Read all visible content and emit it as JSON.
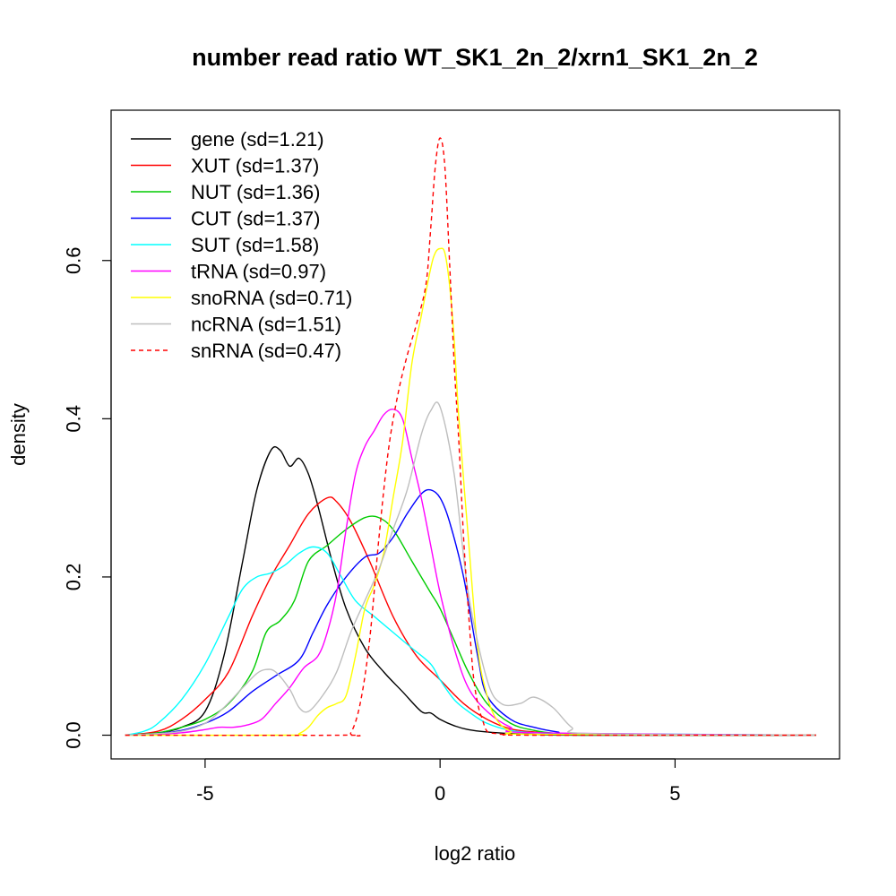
{
  "chart_data": {
    "type": "line",
    "title": "number read ratio WT_SK1_2n_2/xrn1_SK1_2n_2",
    "xlabel": "log2 ratio",
    "ylabel": "density",
    "xlim": [
      -7,
      8.5
    ],
    "ylim": [
      -0.03,
      0.79
    ],
    "x_ticks": [
      -5,
      0,
      5
    ],
    "x_tick_labels": [
      "-5",
      "0",
      "5"
    ],
    "y_ticks": [
      0.0,
      0.2,
      0.4,
      0.6
    ],
    "y_tick_labels": [
      "0.0",
      "0.2",
      "0.4",
      "0.6"
    ],
    "grid": false,
    "legend_position": "top-left",
    "series": [
      {
        "name": "gene (sd=1.21)",
        "color": "#000000",
        "dash": "solid",
        "x": [
          -6.7,
          -6.0,
          -5.5,
          -5.0,
          -4.6,
          -4.2,
          -3.9,
          -3.6,
          -3.4,
          -3.2,
          -3.0,
          -2.8,
          -2.6,
          -2.3,
          -2.0,
          -1.6,
          -1.2,
          -0.8,
          -0.4,
          -0.2,
          0.0,
          0.3,
          0.6,
          1.0,
          1.5,
          2.0,
          3.0,
          8.0
        ],
        "y": [
          0.0,
          0.003,
          0.01,
          0.03,
          0.1,
          0.22,
          0.31,
          0.36,
          0.36,
          0.34,
          0.35,
          0.33,
          0.29,
          0.22,
          0.16,
          0.11,
          0.08,
          0.055,
          0.03,
          0.028,
          0.02,
          0.012,
          0.007,
          0.004,
          0.002,
          0.001,
          0.0,
          0.0
        ]
      },
      {
        "name": "XUT (sd=1.37)",
        "color": "#ff0000",
        "dash": "solid",
        "x": [
          -6.7,
          -6.0,
          -5.5,
          -5.0,
          -4.5,
          -4.0,
          -3.6,
          -3.2,
          -2.8,
          -2.4,
          -2.2,
          -1.9,
          -1.5,
          -1.0,
          -0.5,
          0.0,
          0.5,
          1.0,
          1.5,
          2.0,
          2.5,
          3.0,
          8.0
        ],
        "y": [
          0.0,
          0.005,
          0.02,
          0.045,
          0.08,
          0.15,
          0.2,
          0.24,
          0.28,
          0.3,
          0.295,
          0.27,
          0.22,
          0.15,
          0.1,
          0.07,
          0.04,
          0.02,
          0.008,
          0.004,
          0.002,
          0.001,
          0.0
        ]
      },
      {
        "name": "NUT (sd=1.36)",
        "color": "#00cc00",
        "dash": "solid",
        "x": [
          -6.7,
          -6.0,
          -5.5,
          -5.0,
          -4.5,
          -4.0,
          -3.7,
          -3.4,
          -3.1,
          -2.8,
          -2.4,
          -2.0,
          -1.6,
          -1.3,
          -1.0,
          -0.6,
          -0.2,
          0.0,
          0.3,
          0.6,
          1.0,
          1.5,
          2.0,
          2.5,
          3.0,
          8.0
        ],
        "y": [
          0.0,
          0.003,
          0.01,
          0.02,
          0.04,
          0.08,
          0.13,
          0.145,
          0.17,
          0.22,
          0.24,
          0.26,
          0.275,
          0.275,
          0.26,
          0.22,
          0.18,
          0.16,
          0.12,
          0.08,
          0.04,
          0.015,
          0.006,
          0.002,
          0.001,
          0.0
        ]
      },
      {
        "name": "CUT (sd=1.37)",
        "color": "#0000ff",
        "dash": "solid",
        "x": [
          -6.7,
          -6.0,
          -5.5,
          -5.0,
          -4.5,
          -4.0,
          -3.5,
          -3.0,
          -2.7,
          -2.4,
          -2.0,
          -1.6,
          -1.3,
          -1.0,
          -0.7,
          -0.4,
          -0.2,
          0.0,
          0.2,
          0.5,
          0.8,
          1.0,
          1.5,
          2.0,
          2.5,
          3.0,
          8.0
        ],
        "y": [
          0.0,
          0.002,
          0.006,
          0.015,
          0.03,
          0.055,
          0.075,
          0.095,
          0.13,
          0.165,
          0.2,
          0.225,
          0.23,
          0.25,
          0.28,
          0.305,
          0.31,
          0.3,
          0.27,
          0.2,
          0.1,
          0.05,
          0.02,
          0.01,
          0.004,
          0.001,
          0.0
        ]
      },
      {
        "name": "SUT (sd=1.58)",
        "color": "#00ffff",
        "dash": "solid",
        "x": [
          -6.7,
          -6.3,
          -6.0,
          -5.5,
          -5.0,
          -4.5,
          -4.2,
          -3.9,
          -3.6,
          -3.3,
          -3.0,
          -2.7,
          -2.4,
          -2.1,
          -1.8,
          -1.4,
          -1.0,
          -0.6,
          -0.2,
          0.0,
          0.3,
          0.6,
          1.0,
          1.5,
          2.0,
          2.5,
          3.0,
          8.0
        ],
        "y": [
          0.0,
          0.005,
          0.015,
          0.045,
          0.09,
          0.15,
          0.185,
          0.2,
          0.205,
          0.215,
          0.23,
          0.238,
          0.23,
          0.2,
          0.17,
          0.15,
          0.13,
          0.11,
          0.09,
          0.07,
          0.045,
          0.03,
          0.015,
          0.006,
          0.003,
          0.002,
          0.002,
          0.0
        ]
      },
      {
        "name": "tRNA (sd=0.97)",
        "color": "#ff00ff",
        "dash": "solid",
        "x": [
          -6.7,
          -6.0,
          -5.5,
          -5.0,
          -4.7,
          -4.4,
          -4.1,
          -3.8,
          -3.5,
          -3.2,
          -2.9,
          -2.6,
          -2.4,
          -2.2,
          -2.0,
          -1.8,
          -1.6,
          -1.4,
          -1.2,
          -1.0,
          -0.8,
          -0.6,
          -0.4,
          -0.2,
          0.0,
          0.3,
          0.6,
          1.0,
          1.5,
          2.0,
          8.0
        ],
        "y": [
          0.0,
          0.001,
          0.003,
          0.007,
          0.01,
          0.01,
          0.013,
          0.02,
          0.04,
          0.06,
          0.085,
          0.1,
          0.13,
          0.18,
          0.26,
          0.33,
          0.365,
          0.385,
          0.405,
          0.412,
          0.4,
          0.35,
          0.3,
          0.24,
          0.18,
          0.11,
          0.06,
          0.03,
          0.01,
          0.003,
          0.0
        ]
      },
      {
        "name": "snoRNA (sd=0.71)",
        "color": "#ffff00",
        "dash": "solid",
        "x": [
          -6.7,
          -3.2,
          -3.0,
          -2.8,
          -2.6,
          -2.4,
          -2.2,
          -2.0,
          -1.8,
          -1.6,
          -1.4,
          -1.2,
          -1.0,
          -0.8,
          -0.6,
          -0.4,
          -0.2,
          -0.1,
          0.0,
          0.1,
          0.2,
          0.3,
          0.4,
          0.6,
          0.8,
          1.0,
          1.2,
          1.5,
          2.0,
          8.0
        ],
        "y": [
          0.0,
          0.0,
          0.002,
          0.01,
          0.025,
          0.035,
          0.04,
          0.05,
          0.1,
          0.16,
          0.19,
          0.23,
          0.3,
          0.37,
          0.47,
          0.53,
          0.59,
          0.61,
          0.615,
          0.61,
          0.57,
          0.5,
          0.4,
          0.25,
          0.11,
          0.05,
          0.02,
          0.005,
          0.001,
          0.0
        ]
      },
      {
        "name": "ncRNA (sd=1.51)",
        "color": "#bebebe",
        "dash": "solid",
        "x": [
          -6.7,
          -6.0,
          -5.5,
          -5.0,
          -4.6,
          -4.2,
          -3.9,
          -3.7,
          -3.5,
          -3.2,
          -3.0,
          -2.8,
          -2.5,
          -2.2,
          -1.9,
          -1.6,
          -1.3,
          -1.0,
          -0.7,
          -0.4,
          -0.2,
          0.0,
          0.3,
          0.6,
          1.0,
          1.3,
          1.7,
          2.0,
          2.4,
          2.8,
          3.2,
          8.0
        ],
        "y": [
          0.0,
          0.002,
          0.005,
          0.015,
          0.035,
          0.06,
          0.078,
          0.083,
          0.08,
          0.058,
          0.035,
          0.03,
          0.05,
          0.08,
          0.13,
          0.17,
          0.21,
          0.26,
          0.31,
          0.38,
          0.41,
          0.415,
          0.33,
          0.18,
          0.07,
          0.04,
          0.04,
          0.048,
          0.035,
          0.01,
          0.002,
          0.0
        ]
      },
      {
        "name": "snRNA (sd=0.47)",
        "color": "#ff0000",
        "dash": "dashed",
        "x": [
          -6.7,
          -2.1,
          -1.9,
          -1.7,
          -1.5,
          -1.3,
          -1.1,
          -0.9,
          -0.7,
          -0.5,
          -0.3,
          -0.2,
          -0.1,
          0.0,
          0.1,
          0.2,
          0.3,
          0.4,
          0.5,
          0.6,
          0.7,
          0.8,
          0.9,
          1.0,
          1.2,
          1.4,
          2.0,
          8.0
        ],
        "y": [
          0.0,
          0.0,
          0.003,
          0.04,
          0.12,
          0.25,
          0.36,
          0.43,
          0.48,
          0.52,
          0.57,
          0.64,
          0.72,
          0.755,
          0.72,
          0.6,
          0.47,
          0.37,
          0.25,
          0.16,
          0.08,
          0.04,
          0.02,
          0.005,
          0.002,
          0.001,
          0.0,
          0.0
        ]
      }
    ]
  }
}
